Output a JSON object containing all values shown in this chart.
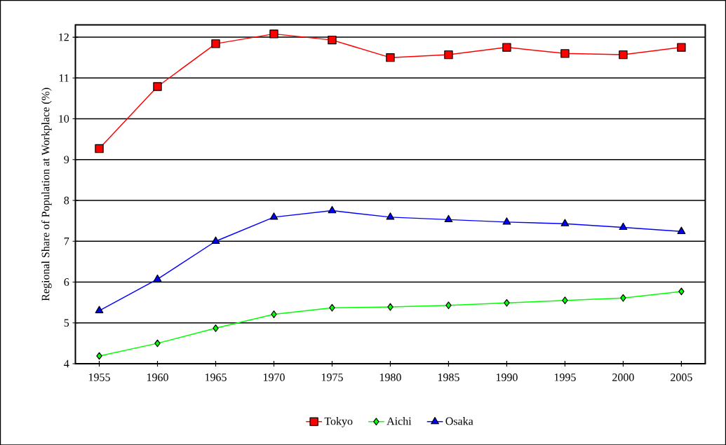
{
  "chart_data": {
    "type": "line",
    "ylabel": "Regional Share of Population at Workplace (%)",
    "categories": [
      "1955",
      "1960",
      "1965",
      "1970",
      "1975",
      "1980",
      "1985",
      "1990",
      "1995",
      "2000",
      "2005"
    ],
    "series": [
      {
        "name": "Tokyo",
        "color": "#ff0000",
        "marker": "square",
        "values": [
          9.27,
          10.79,
          11.84,
          12.08,
          11.93,
          11.5,
          11.57,
          11.75,
          11.6,
          11.57,
          11.75
        ]
      },
      {
        "name": "Aichi",
        "color": "#00ff00",
        "marker": "diamond",
        "values": [
          4.19,
          4.5,
          4.87,
          5.21,
          5.37,
          5.39,
          5.43,
          5.49,
          5.55,
          5.61,
          5.77
        ]
      },
      {
        "name": "Osaka",
        "color": "#0000ff",
        "marker": "triangle",
        "values": [
          5.3,
          6.07,
          7.0,
          7.59,
          7.75,
          7.59,
          7.53,
          7.47,
          7.43,
          7.34,
          7.24
        ]
      }
    ],
    "ylim": [
      4,
      12.3
    ],
    "yticks": [
      4,
      5,
      6,
      7,
      8,
      9,
      10,
      11,
      12
    ],
    "grid": "y",
    "legend": "bottom",
    "line_style": "solid"
  }
}
